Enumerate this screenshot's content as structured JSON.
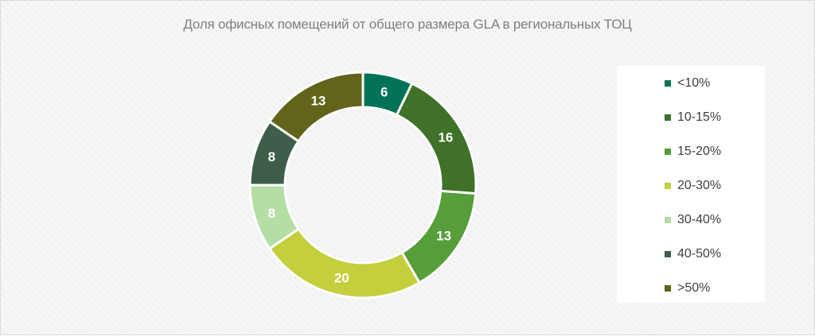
{
  "chart_data": {
    "type": "pie",
    "style": "doughnut",
    "title": "Доля офисных помещений от общего размера GLA в региональных ТОЦ",
    "categories": [
      "<10%",
      "10-15%",
      "15-20%",
      "20-30%",
      "30-40%",
      "40-50%",
      ">50%"
    ],
    "values": [
      6,
      16,
      13,
      20,
      8,
      8,
      13
    ],
    "colors": [
      "#007255",
      "#3f7228",
      "#559e3a",
      "#c4cf3c",
      "#b5dea5",
      "#3f5e4a",
      "#626419"
    ],
    "data_labels": true,
    "legend": "right"
  }
}
